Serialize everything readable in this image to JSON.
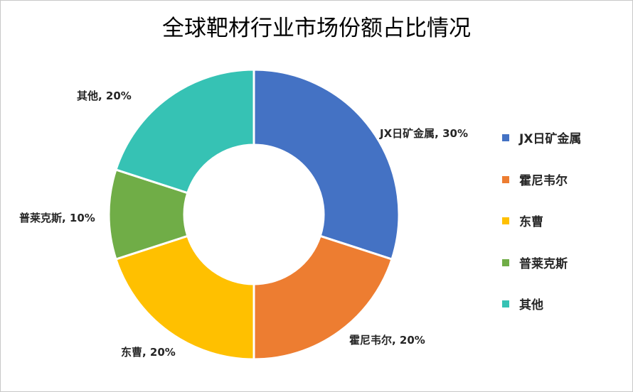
{
  "chart_data": {
    "type": "pie",
    "subtype": "donut",
    "title": "全球靶材行业市场份额占比情况",
    "unit": "%",
    "categories": [
      "JX日矿金属",
      "霍尼韦尔",
      "东曹",
      "普莱克斯",
      "其他"
    ],
    "values": [
      30,
      20,
      20,
      10,
      20
    ],
    "data_labels": [
      "JX日矿金属, 30%",
      "霍尼韦尔, 20%",
      "东曹, 20%",
      "普莱克斯, 10%",
      "其他, 20%"
    ],
    "colors": [
      "#4472c4",
      "#ed7d31",
      "#ffc000",
      "#70ad47",
      "#36c2b4"
    ],
    "legend": {
      "position": "right",
      "entries": [
        "JX日矿金属",
        "霍尼韦尔",
        "东曹",
        "普莱克斯",
        "其他"
      ]
    }
  }
}
